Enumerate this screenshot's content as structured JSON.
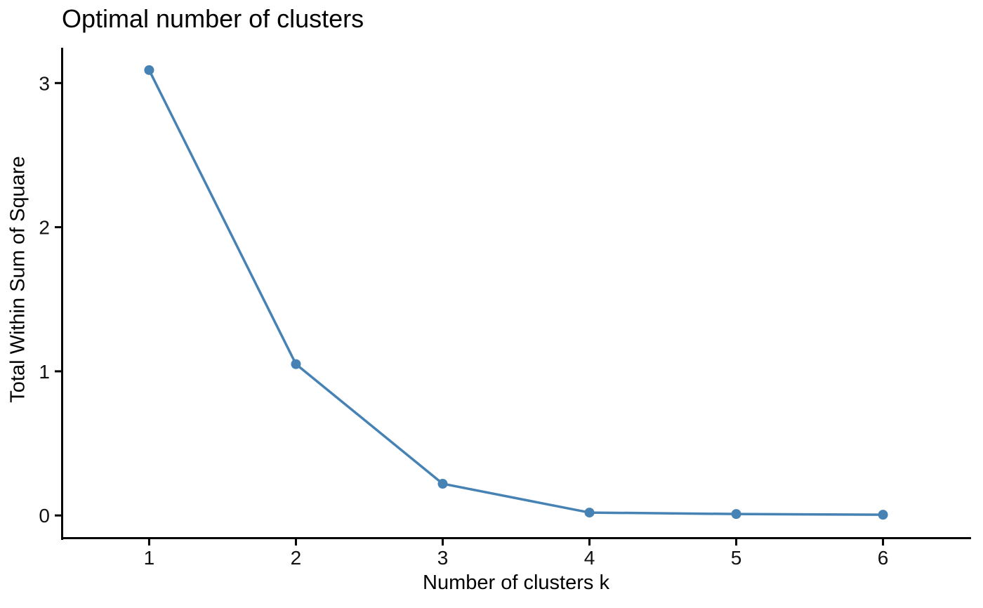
{
  "chart_data": {
    "type": "line",
    "title": "Optimal number of clusters",
    "xlabel": "Number of clusters k",
    "ylabel": "Total Within Sum of Square",
    "categories": [
      "1",
      "2",
      "3",
      "4",
      "5",
      "6"
    ],
    "series": [
      {
        "name": "total-within-sum-of-square",
        "values": [
          3.09,
          1.05,
          0.22,
          0.02,
          0.01,
          0.005
        ]
      }
    ],
    "x_values": [
      1,
      2,
      3,
      4,
      5,
      6
    ],
    "y_ticks": [
      0,
      1,
      2,
      3
    ],
    "xlim": [
      0.4,
      6.6
    ],
    "ylim": [
      -0.155,
      3.245
    ],
    "grid": false,
    "legend_position": "none",
    "marker": "circle",
    "line_color": "#4682B4",
    "point_color": "#4682B4",
    "axis_color": "#000000",
    "text_color": "#000000",
    "background_color": "#FFFFFF"
  }
}
